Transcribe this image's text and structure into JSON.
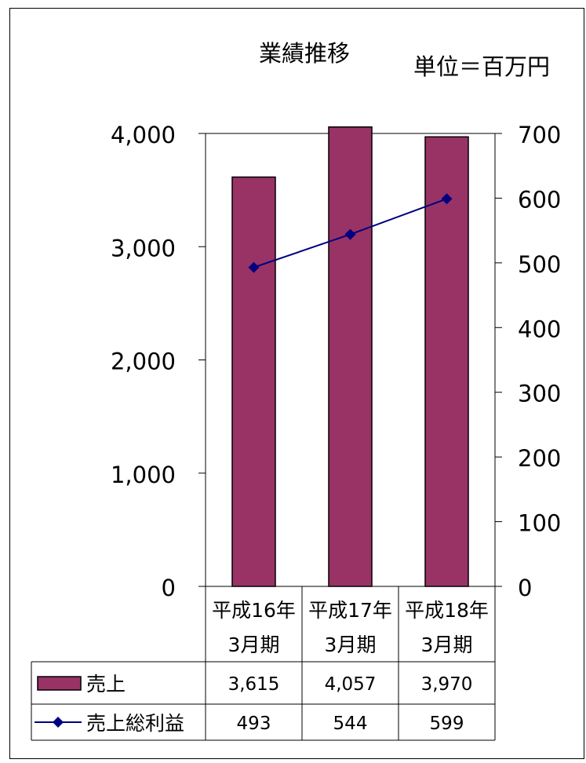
{
  "chart_data": {
    "type": "bar",
    "title": "業績推移",
    "unit_note": "単位＝百万円",
    "categories": [
      {
        "line1": "平成16年",
        "line2": "3月期"
      },
      {
        "line1": "平成17年",
        "line2": "3月期"
      },
      {
        "line1": "平成18年",
        "line2": "3月期"
      }
    ],
    "y_left": {
      "min": 0,
      "max": 4000,
      "ticks": [
        0,
        1000,
        2000,
        3000,
        4000
      ],
      "tick_labels": [
        "0",
        "1,000",
        "2,000",
        "3,000",
        "4,000"
      ]
    },
    "y_right": {
      "min": 0,
      "max": 700,
      "ticks": [
        0,
        100,
        200,
        300,
        400,
        500,
        600,
        700
      ],
      "tick_labels": [
        "0",
        "100",
        "200",
        "300",
        "400",
        "500",
        "600",
        "700"
      ]
    },
    "grid": false,
    "legend_placement": "data-table-below",
    "series": [
      {
        "name": "売上",
        "kind": "bar",
        "axis": "left",
        "color": "#993366",
        "values": [
          3615,
          4057,
          3970
        ],
        "value_labels": [
          "3,615",
          "4,057",
          "3,970"
        ]
      },
      {
        "name": "売上総利益",
        "kind": "line",
        "axis": "right",
        "color": "#000080",
        "marker": "diamond",
        "values": [
          493,
          544,
          599
        ],
        "value_labels": [
          "493",
          "544",
          "599"
        ]
      }
    ]
  }
}
